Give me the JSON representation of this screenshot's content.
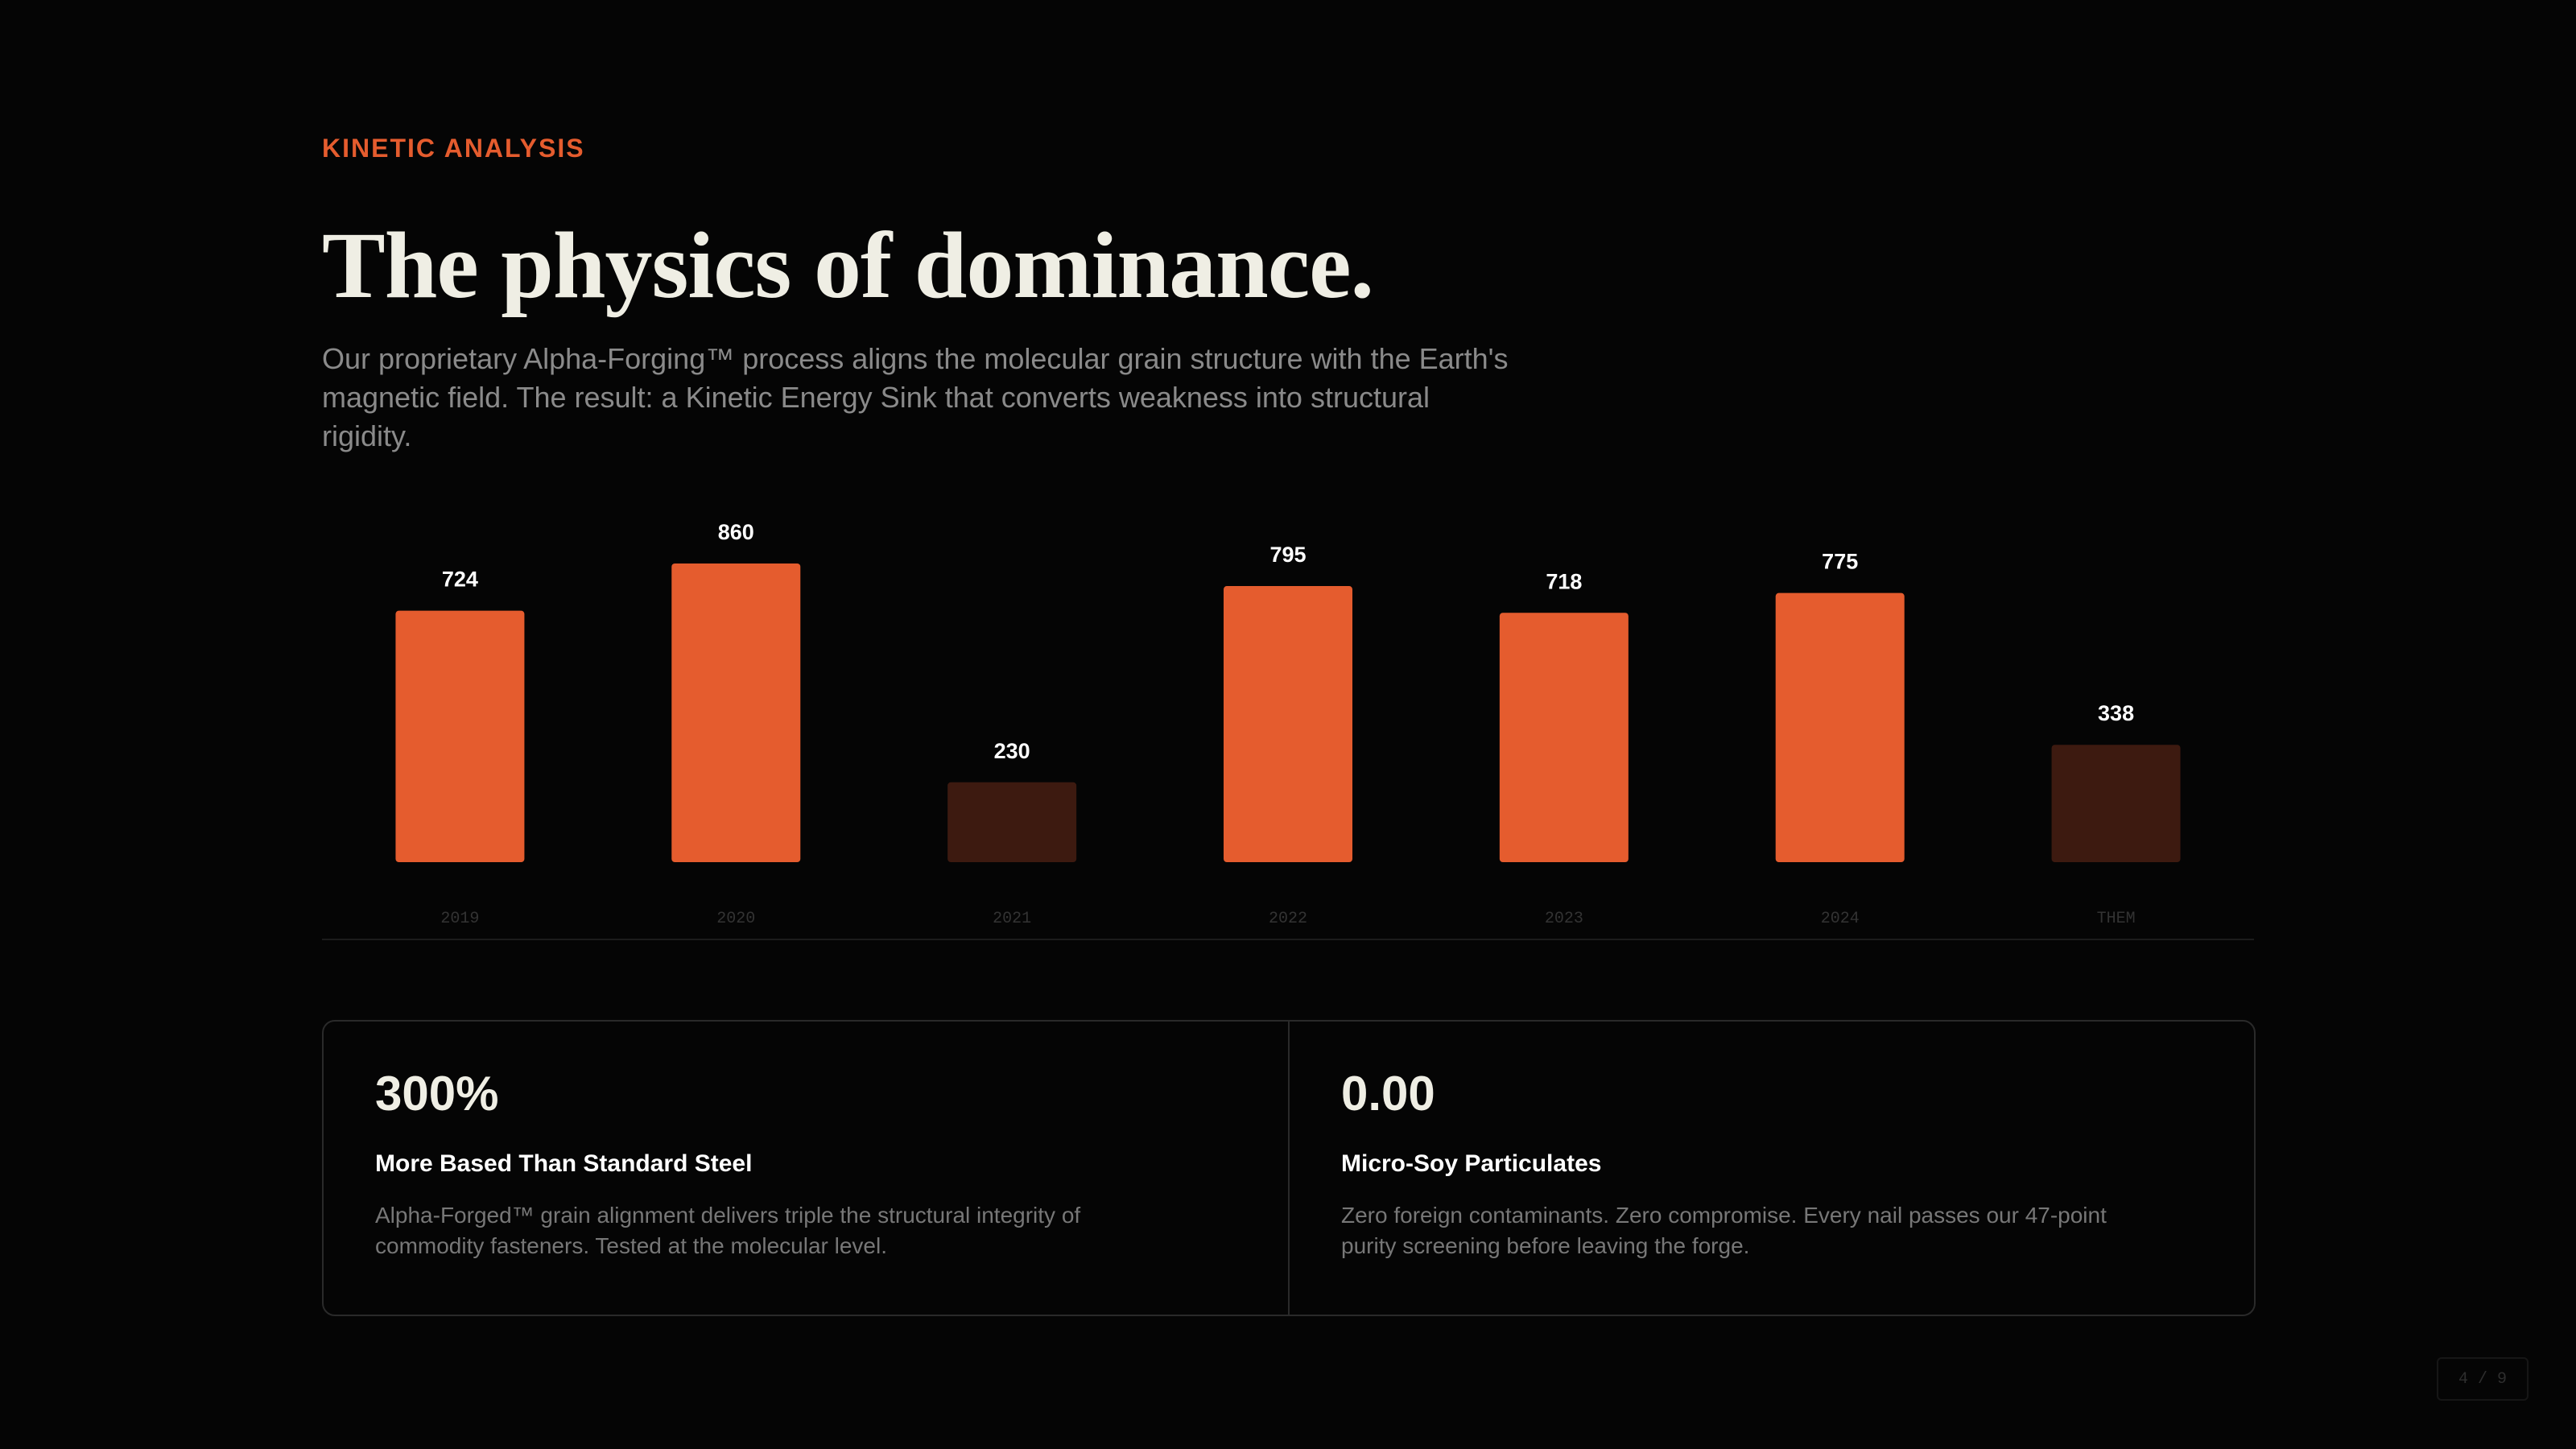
{
  "eyebrow": "KINETIC ANALYSIS",
  "title": "The physics of dominance.",
  "description": "Our proprietary Alpha-Forging™ process aligns the molecular grain structure with the Earth's magnetic field. The result: a Kinetic Energy Sink that converts weakness into structural rigidity.",
  "chart_data": {
    "type": "bar",
    "categories": [
      "2019",
      "2020",
      "2021",
      "2022",
      "2023",
      "2024",
      "THEM"
    ],
    "values": [
      724,
      860,
      230,
      795,
      718,
      775,
      338
    ],
    "colors": [
      "#e55c2e",
      "#e55c2e",
      "#3d1a10",
      "#e55c2e",
      "#e55c2e",
      "#e55c2e",
      "#3d1a10"
    ],
    "ylim": [
      0,
      860
    ]
  },
  "cards": [
    {
      "stat": "300%",
      "heading": "More Based Than Standard Steel",
      "text": "Alpha-Forged™ grain alignment delivers triple the structural integrity of commodity fasteners. Tested at the molecular level."
    },
    {
      "stat": "0.00",
      "heading": "Micro-Soy Particulates",
      "text": "Zero foreign contaminants. Zero compromise. Every nail passes our 47-point purity screening before leaving the forge."
    }
  ],
  "page_indicator": "4 / 9"
}
